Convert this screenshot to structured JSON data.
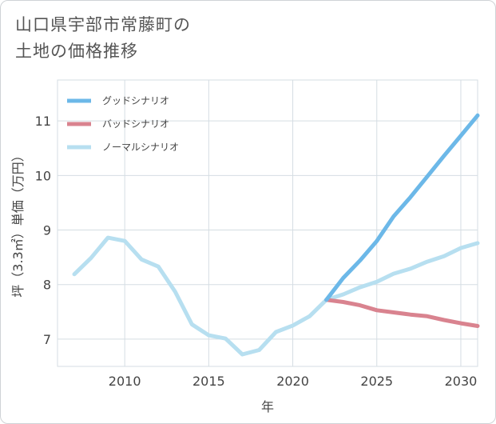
{
  "title_line1": "山口県宇部市常藤町の",
  "title_line2": "土地の価格推移",
  "chart_data": {
    "type": "line",
    "xlabel": "年",
    "ylabel": "坪（3.3㎡）単価（万円）",
    "xlim": [
      2006,
      2031
    ],
    "ylim": [
      6.5,
      11.75
    ],
    "x_ticks": [
      2010,
      2015,
      2020,
      2025,
      2030
    ],
    "y_ticks": [
      7,
      8,
      9,
      10,
      11
    ],
    "grid": true,
    "legend_position": "top-left",
    "series": [
      {
        "name": "グッドシナリオ",
        "color": "#6cb8e8",
        "x": [
          2022,
          2023,
          2024,
          2025,
          2026,
          2027,
          2028,
          2029,
          2030,
          2031
        ],
        "y": [
          7.72,
          8.12,
          8.44,
          8.8,
          9.25,
          9.6,
          9.98,
          10.36,
          10.73,
          11.1
        ]
      },
      {
        "name": "バッドシナリオ",
        "color": "#d9838f",
        "x": [
          2022,
          2023,
          2024,
          2025,
          2026,
          2027,
          2028,
          2029,
          2030,
          2031
        ],
        "y": [
          7.72,
          7.68,
          7.62,
          7.53,
          7.49,
          7.45,
          7.42,
          7.35,
          7.29,
          7.24
        ]
      },
      {
        "name": "ノーマルシナリオ",
        "color": "#b7dff0",
        "x": [
          2007,
          2008,
          2009,
          2010,
          2011,
          2012,
          2013,
          2014,
          2015,
          2016,
          2017,
          2018,
          2019,
          2020,
          2021,
          2022,
          2023,
          2024,
          2025,
          2026,
          2027,
          2028,
          2029,
          2030,
          2031
        ],
        "y": [
          8.19,
          8.49,
          8.86,
          8.8,
          8.46,
          8.33,
          7.87,
          7.27,
          7.07,
          7.01,
          6.72,
          6.8,
          7.13,
          7.25,
          7.42,
          7.72,
          7.82,
          7.95,
          8.05,
          8.2,
          8.29,
          8.42,
          8.52,
          8.67,
          8.76
        ]
      }
    ]
  }
}
